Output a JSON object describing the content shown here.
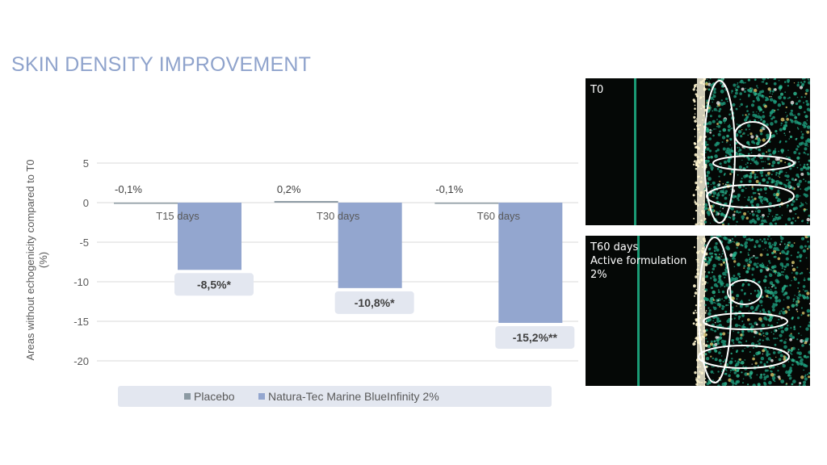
{
  "page": {
    "title": "SKIN DENSITY IMPROVEMENT"
  },
  "chart_data": {
    "type": "bar",
    "title": "",
    "ylabel": "Areas without echogenicity  compared to T0 (%)",
    "ylim": [
      -20,
      5
    ],
    "yticks": [
      5,
      0,
      -5,
      -10,
      -15,
      -20
    ],
    "categories": [
      "T15 days",
      "T30 days",
      "T60 days"
    ],
    "series": [
      {
        "name": "Placebo",
        "values": [
          -0.1,
          0.2,
          -0.1
        ],
        "labels": [
          "-0,1%",
          "0,2%",
          "-0,1%"
        ],
        "color": "#8c9aa3"
      },
      {
        "name": "Natura-Tec Marine BlueInfinity 2%",
        "values": [
          -8.5,
          -10.8,
          -15.2
        ],
        "labels": [
          "-8,5%*",
          "-10,8%*",
          "-15,2%**"
        ],
        "color": "#93a6cf"
      }
    ],
    "grid": true,
    "legend": "bottom"
  },
  "images": [
    {
      "label": "T0",
      "icon": "ultrasound-scan-image"
    },
    {
      "label": "T60 days\nActive formulation\n2%",
      "icon": "ultrasound-scan-image"
    }
  ],
  "colors": {
    "title": "#8fa3cc",
    "label_box": "#e3e7f0",
    "gridline": "#d9d9d9",
    "axis_text": "#595959"
  }
}
